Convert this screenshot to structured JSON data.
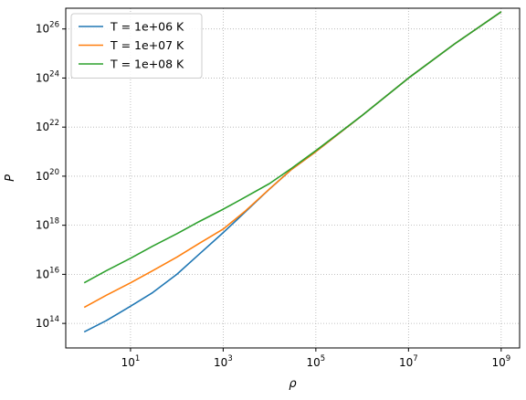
{
  "chart_data": {
    "type": "line",
    "title": "",
    "xlabel": "ρ",
    "ylabel": "P",
    "xscale": "log",
    "yscale": "log",
    "xlim": [
      0.4,
      2500000000.0
    ],
    "ylim": [
      10000000000000.0,
      7e+26
    ],
    "grid": true,
    "legend_position": "top-left",
    "x_ticks": [
      {
        "value": 10,
        "base": "10",
        "exp": "1"
      },
      {
        "value": 1000,
        "base": "10",
        "exp": "3"
      },
      {
        "value": 100000,
        "base": "10",
        "exp": "5"
      },
      {
        "value": 10000000,
        "base": "10",
        "exp": "7"
      },
      {
        "value": 1000000000,
        "base": "10",
        "exp": "9"
      }
    ],
    "y_ticks": [
      {
        "value": 100000000000000.0,
        "base": "10",
        "exp": "14"
      },
      {
        "value": 1e+16,
        "base": "10",
        "exp": "16"
      },
      {
        "value": 1e+18,
        "base": "10",
        "exp": "18"
      },
      {
        "value": 1e+20,
        "base": "10",
        "exp": "20"
      },
      {
        "value": 1e+22,
        "base": "10",
        "exp": "22"
      },
      {
        "value": 1e+24,
        "base": "10",
        "exp": "24"
      },
      {
        "value": 1e+26,
        "base": "10",
        "exp": "26"
      }
    ],
    "series": [
      {
        "name": "T = 1e+06 K",
        "color": "#1f77b4",
        "x": [
          1,
          3,
          10,
          30,
          100,
          300,
          1000,
          3000,
          10000,
          30000,
          100000,
          1000000,
          10000000,
          100000000,
          1000000000
        ],
        "y": [
          45000000000000.0,
          130000000000000.0,
          500000000000000.0,
          1800000000000000.0,
          1e+16,
          6.5e+16,
          5e+17,
          3.5e+18,
          3e+19,
          1.9e+20,
          1e+21,
          3e+22,
          1e+24,
          2.5e+25,
          5e+26
        ]
      },
      {
        "name": "T = 1e+07 K",
        "color": "#ff7f0e",
        "x": [
          1,
          3,
          10,
          30,
          100,
          300,
          1000,
          3000,
          10000,
          30000,
          100000,
          1000000,
          10000000,
          100000000,
          1000000000
        ],
        "y": [
          450000000000000.0,
          1400000000000000.0,
          4500000000000000.0,
          1.4e+16,
          5e+16,
          1.8e+17,
          7e+17,
          3.8e+18,
          3e+19,
          1.9e+20,
          1e+21,
          3e+22,
          1e+24,
          2.5e+25,
          5e+26
        ]
      },
      {
        "name": "T = 1e+08 K",
        "color": "#2ca02c",
        "x": [
          1,
          3,
          10,
          30,
          100,
          300,
          1000,
          3000,
          10000,
          30000,
          100000,
          1000000,
          10000000,
          100000000,
          1000000000
        ],
        "y": [
          4500000000000000.0,
          1.4e+16,
          4.5e+16,
          1.4e+17,
          4.5e+17,
          1.4e+18,
          4.5e+18,
          1.4e+19,
          5e+19,
          2.1e+20,
          1.1e+21,
          3e+22,
          1e+24,
          2.5e+25,
          5e+26
        ]
      }
    ]
  }
}
